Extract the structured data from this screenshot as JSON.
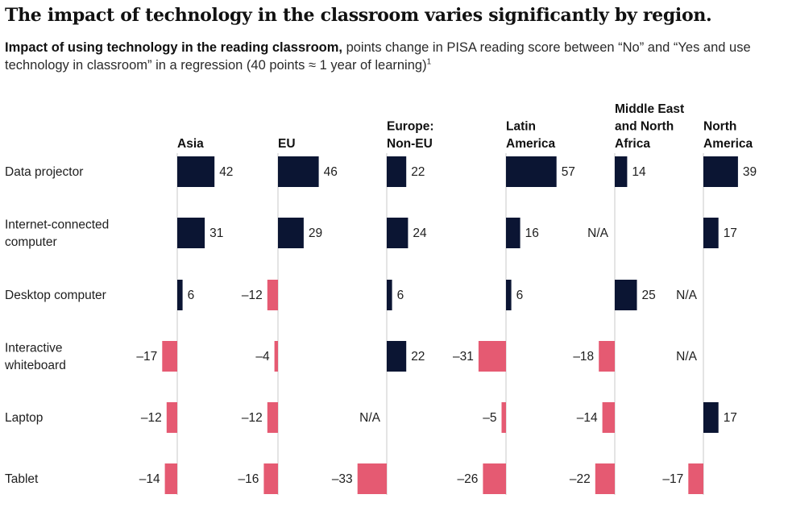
{
  "title": "The impact of technology in the classroom varies significantly by region.",
  "subtitle": {
    "lead": "Impact of using technology in the reading classroom,",
    "rest": " points change in PISA reading score between “No” and “Yes and use technology in classroom” in a regression (40 points ≈ 1 year of learning)",
    "footnote": "1"
  },
  "chart_data": {
    "type": "bar",
    "orientation": "horizontal",
    "title": "Impact of using technology in the reading classroom",
    "unit": "points change in PISA reading score",
    "categories": [
      "Data projector",
      "Internet-connected computer",
      "Desktop computer",
      "Interactive whiteboard",
      "Laptop",
      "Tablet"
    ],
    "na_label": "N/A",
    "colors": {
      "positive": "#0b1533",
      "negative": "#e55a72",
      "axis": "#c8c8c8"
    },
    "series": [
      {
        "name": "Asia",
        "label_lines": [
          "Asia"
        ],
        "values": [
          42,
          31,
          6,
          -17,
          -12,
          -14
        ]
      },
      {
        "name": "EU",
        "label_lines": [
          "EU"
        ],
        "values": [
          46,
          29,
          -12,
          -4,
          -12,
          -16
        ]
      },
      {
        "name": "Europe: Non-EU",
        "label_lines": [
          "Europe:",
          "Non-EU"
        ],
        "values": [
          22,
          24,
          6,
          22,
          null,
          -33
        ]
      },
      {
        "name": "Latin America",
        "label_lines": [
          "Latin",
          "America"
        ],
        "values": [
          57,
          16,
          6,
          -31,
          -5,
          -26
        ]
      },
      {
        "name": "Middle East and North Africa",
        "label_lines": [
          "Middle East",
          "and North",
          "Africa"
        ],
        "values": [
          14,
          null,
          25,
          -18,
          -14,
          -22
        ]
      },
      {
        "name": "North America",
        "label_lines": [
          "North",
          "America"
        ],
        "values": [
          39,
          17,
          null,
          null,
          17,
          -17
        ]
      }
    ],
    "value_labels": [
      [
        "42",
        "31",
        "6",
        "–17",
        "–12",
        "–14"
      ],
      [
        "46",
        "29",
        "–12",
        "–4",
        "–12",
        "–16"
      ],
      [
        "22",
        "24",
        "6",
        "22",
        "N/A",
        "–33"
      ],
      [
        "57",
        "16",
        "6",
        "–31",
        "–5",
        "–26"
      ],
      [
        "14",
        "N/A",
        "25",
        "–18",
        "–14",
        "–22"
      ],
      [
        "39",
        "17",
        "N/A",
        "N/A",
        "17",
        "–17"
      ]
    ]
  }
}
